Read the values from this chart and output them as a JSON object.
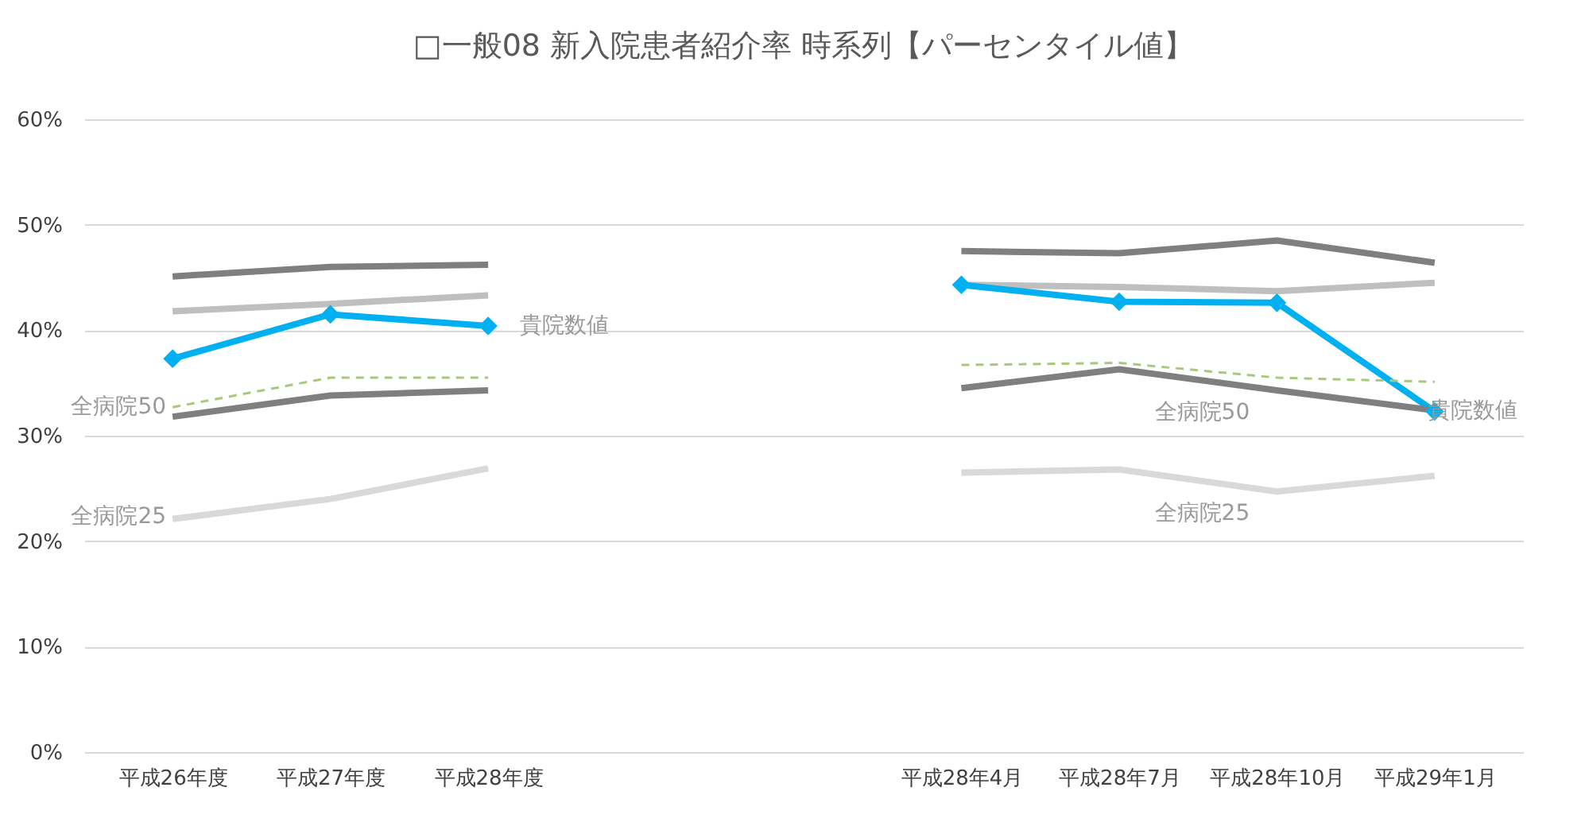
{
  "chart_data": {
    "type": "line",
    "title": "□一般08 新入院患者紹介率 時系列【パーセンタイル値】",
    "categories": [
      "平成26年度",
      "平成27年度",
      "平成28年度",
      null,
      null,
      "平成28年4月",
      "平成28年7月",
      "平成28年10月",
      "平成29年1月"
    ],
    "series": [
      {
        "color": "#7f7f7f",
        "values": [
          45.1,
          46.0,
          46.2,
          null,
          null,
          47.5,
          47.3,
          48.5,
          46.4
        ]
      },
      {
        "color": "#bfbfbf",
        "values": [
          41.8,
          42.5,
          43.3,
          null,
          null,
          44.3,
          44.1,
          43.7,
          44.5
        ]
      },
      {
        "color": "#00b0f0",
        "marker": "diamond",
        "values": [
          37.3,
          41.5,
          40.4,
          null,
          null,
          44.3,
          42.7,
          42.6,
          32.3
        ]
      },
      {
        "color": "#a9c97a",
        "line_style": "dashed",
        "values": [
          32.7,
          35.5,
          35.5,
          null,
          null,
          36.7,
          36.9,
          35.5,
          35.1
        ]
      },
      {
        "color": "#7f7f7f",
        "values": [
          31.8,
          33.8,
          34.3,
          null,
          null,
          34.5,
          36.3,
          34.3,
          32.4
        ]
      },
      {
        "color": "#d9d9d9",
        "values": [
          22.1,
          24.0,
          26.9,
          null,
          null,
          26.5,
          26.8,
          24.7,
          26.2
        ]
      }
    ],
    "annotations": [
      {
        "text": "全病院50",
        "x": "平成26年度",
        "y": 32.7
      },
      {
        "text": "全病院25",
        "x": "平成26年度",
        "y": 22.3
      },
      {
        "text": "貴院数値",
        "x": "平成28年度",
        "y": 40.4
      },
      {
        "text": "全病院50",
        "x": "平成28年10月",
        "y": 34.3
      },
      {
        "text": "全病院25",
        "x": "平成28年10月",
        "y": 24.7
      },
      {
        "text": "貴院数値",
        "x": "平成29年1月",
        "y": 32.3
      }
    ],
    "ylim": [
      0,
      60
    ],
    "yticks": [
      {
        "value": 0,
        "label": "0%"
      },
      {
        "value": 10,
        "label": "10%"
      },
      {
        "value": 20,
        "label": "20%"
      },
      {
        "value": 30,
        "label": "30%"
      },
      {
        "value": 40,
        "label": "40%"
      },
      {
        "value": 50,
        "label": "50%"
      },
      {
        "value": 60,
        "label": "60%"
      }
    ],
    "grid": "y"
  }
}
